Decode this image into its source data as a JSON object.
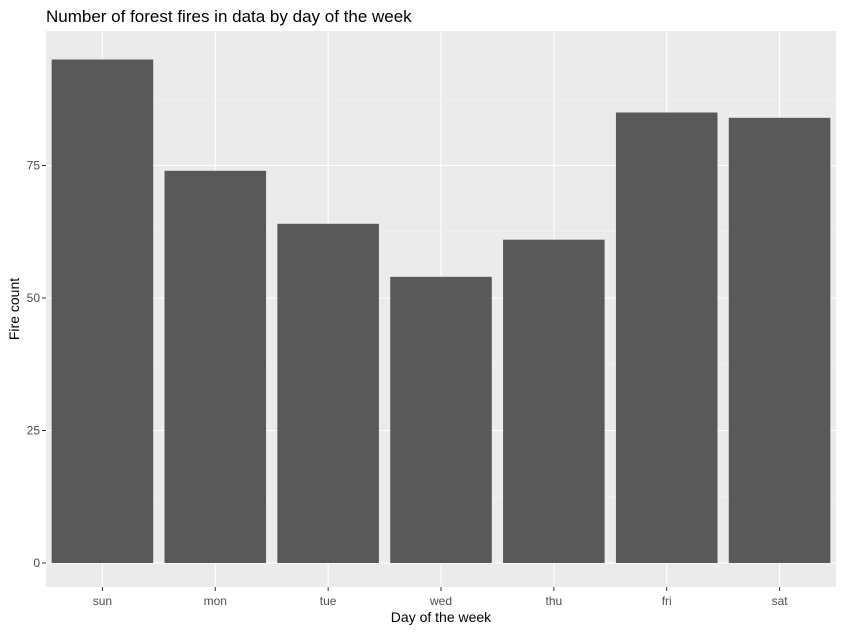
{
  "chart_data": {
    "type": "bar",
    "title": "Number of forest fires in data by day of the week",
    "xlabel": "Day of the week",
    "ylabel": "Fire count",
    "categories": [
      "sun",
      "mon",
      "tue",
      "wed",
      "thu",
      "fri",
      "sat"
    ],
    "values": [
      95,
      74,
      64,
      54,
      61,
      85,
      84
    ],
    "ylim": [
      0,
      100
    ],
    "yticks": [
      0,
      25,
      50,
      75
    ],
    "grid": true,
    "colors": {
      "panel_background": "#ebebeb",
      "grid_major": "#ffffff",
      "grid_minor": "#f5f5f5",
      "bar_fill": "#595959"
    }
  }
}
